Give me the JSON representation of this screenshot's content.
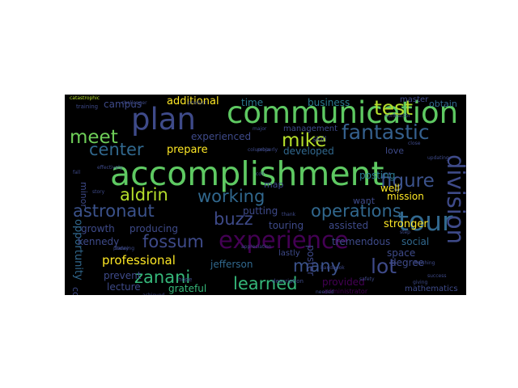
{
  "palette": {
    "page_bg": "#ffffff",
    "cloud_bg": "#000000",
    "colormap": "viridis"
  },
  "words": [
    {
      "text": "accomplishment",
      "color": "#5ec962"
    },
    {
      "text": "communication",
      "color": "#5ec962"
    },
    {
      "text": "experience",
      "color": "#440154"
    },
    {
      "text": "plan",
      "color": "#3e4a89"
    },
    {
      "text": "tour",
      "color": "#31688e"
    },
    {
      "text": "division",
      "color": "#3e4a89"
    },
    {
      "text": "meet",
      "color": "#6ece58"
    },
    {
      "text": "fantastic",
      "color": "#35608d"
    },
    {
      "text": "test",
      "color": "#b5de2b"
    },
    {
      "text": "mike",
      "color": "#b5de2b"
    },
    {
      "text": "center",
      "color": "#31688e"
    },
    {
      "text": "figure",
      "color": "#3b528b"
    },
    {
      "text": "aldrin",
      "color": "#b5de2b"
    },
    {
      "text": "working",
      "color": "#31688e"
    },
    {
      "text": "astronaut",
      "color": "#3b528b"
    },
    {
      "text": "buzz",
      "color": "#3e4a89"
    },
    {
      "text": "operations",
      "color": "#31688e"
    },
    {
      "text": "fossum",
      "color": "#3e4a89"
    },
    {
      "text": "lot",
      "color": "#3e4a89"
    },
    {
      "text": "many",
      "color": "#3b528b"
    },
    {
      "text": "zanani",
      "color": "#35b779"
    },
    {
      "text": "learned",
      "color": "#35b779"
    },
    {
      "text": "professional",
      "color": "#fde725"
    },
    {
      "text": "opportunity",
      "color": "#31688e"
    },
    {
      "text": "campus",
      "color": "#3e4a89"
    },
    {
      "text": "additional",
      "color": "#fde725"
    },
    {
      "text": "time",
      "color": "#2a788e"
    },
    {
      "text": "business",
      "color": "#2a788e"
    },
    {
      "text": "master",
      "color": "#3e4a89"
    },
    {
      "text": "obtain",
      "color": "#31688e"
    },
    {
      "text": "experienced",
      "color": "#3e4a89"
    },
    {
      "text": "management",
      "color": "#3e4a89"
    },
    {
      "text": "prepare",
      "color": "#fde725"
    },
    {
      "text": "developed",
      "color": "#31688e"
    },
    {
      "text": "love",
      "color": "#3e4a89"
    },
    {
      "text": "posting",
      "color": "#2a788e"
    },
    {
      "text": "well",
      "color": "#fde725"
    },
    {
      "text": "mission",
      "color": "#fde725"
    },
    {
      "text": "want",
      "color": "#3e4a89"
    },
    {
      "text": "map",
      "color": "#3e4a89"
    },
    {
      "text": "putting",
      "color": "#3e4a89"
    },
    {
      "text": "touring",
      "color": "#3e4a89"
    },
    {
      "text": "poster",
      "color": "#3e4a89"
    },
    {
      "text": "assisted",
      "color": "#3e4a89"
    },
    {
      "text": "stronger",
      "color": "#fde725"
    },
    {
      "text": "tremendous",
      "color": "#3e4a89"
    },
    {
      "text": "social",
      "color": "#31688e"
    },
    {
      "text": "space",
      "color": "#3e4a89"
    },
    {
      "text": "degree",
      "color": "#3e4a89"
    },
    {
      "text": "provided",
      "color": "#440154"
    },
    {
      "text": "growth",
      "color": "#3e4a89"
    },
    {
      "text": "producing",
      "color": "#3e4a89"
    },
    {
      "text": "kennedy",
      "color": "#3e4a89"
    },
    {
      "text": "minor",
      "color": "#3e4a89"
    },
    {
      "text": "prevent",
      "color": "#3e4a89"
    },
    {
      "text": "jefferson",
      "color": "#31688e"
    },
    {
      "text": "grateful",
      "color": "#35b779"
    },
    {
      "text": "lecture",
      "color": "#3e4a89"
    },
    {
      "text": "control",
      "color": "#3e4a89"
    },
    {
      "text": "mathematics",
      "color": "#3e4a89"
    },
    {
      "text": "administrator",
      "color": "#440154"
    },
    {
      "text": "catastrophic",
      "color": "#b5de2b"
    },
    {
      "text": "training",
      "color": "#3e4a89"
    },
    {
      "text": "skill",
      "color": "#3e4a89"
    },
    {
      "text": "close",
      "color": "#3e4a89"
    },
    {
      "text": "coll",
      "color": "#3e4a89"
    },
    {
      "text": "lastly",
      "color": "#3e4a89"
    },
    {
      "text": "description",
      "color": "#3e4a89"
    },
    {
      "text": "safety",
      "color": "#3e4a89"
    },
    {
      "text": "finishing",
      "color": "#3e4a89"
    },
    {
      "text": "success",
      "color": "#3e4a89"
    },
    {
      "text": "giving",
      "color": "#3e4a89"
    },
    {
      "text": "appreciation",
      "color": "#3e4a89"
    },
    {
      "text": "hope",
      "color": "#3e4a89"
    },
    {
      "text": "story",
      "color": "#3e4a89"
    },
    {
      "text": "fall",
      "color": "#3e4a89"
    },
    {
      "text": "planning",
      "color": "#3e4a89"
    },
    {
      "text": "today",
      "color": "#3e4a89"
    },
    {
      "text": "handbook",
      "color": "#3e4a89"
    },
    {
      "text": "step",
      "color": "#3e4a89"
    },
    {
      "text": "needed",
      "color": "#3e4a89"
    },
    {
      "text": "achieved",
      "color": "#3e4a89"
    },
    {
      "text": "major",
      "color": "#3e4a89"
    },
    {
      "text": "contractor",
      "color": "#3e4a89"
    },
    {
      "text": "properly",
      "color": "#3e4a89"
    },
    {
      "text": "updating",
      "color": "#3e4a89"
    },
    {
      "text": "thank",
      "color": "#3e4a89"
    },
    {
      "text": "product",
      "color": "#3e4a89"
    },
    {
      "text": "columbia",
      "color": "#3e4a89"
    },
    {
      "text": "effectively",
      "color": "#3e4a89"
    },
    {
      "text": "challenger",
      "color": "#3e4a89"
    }
  ]
}
